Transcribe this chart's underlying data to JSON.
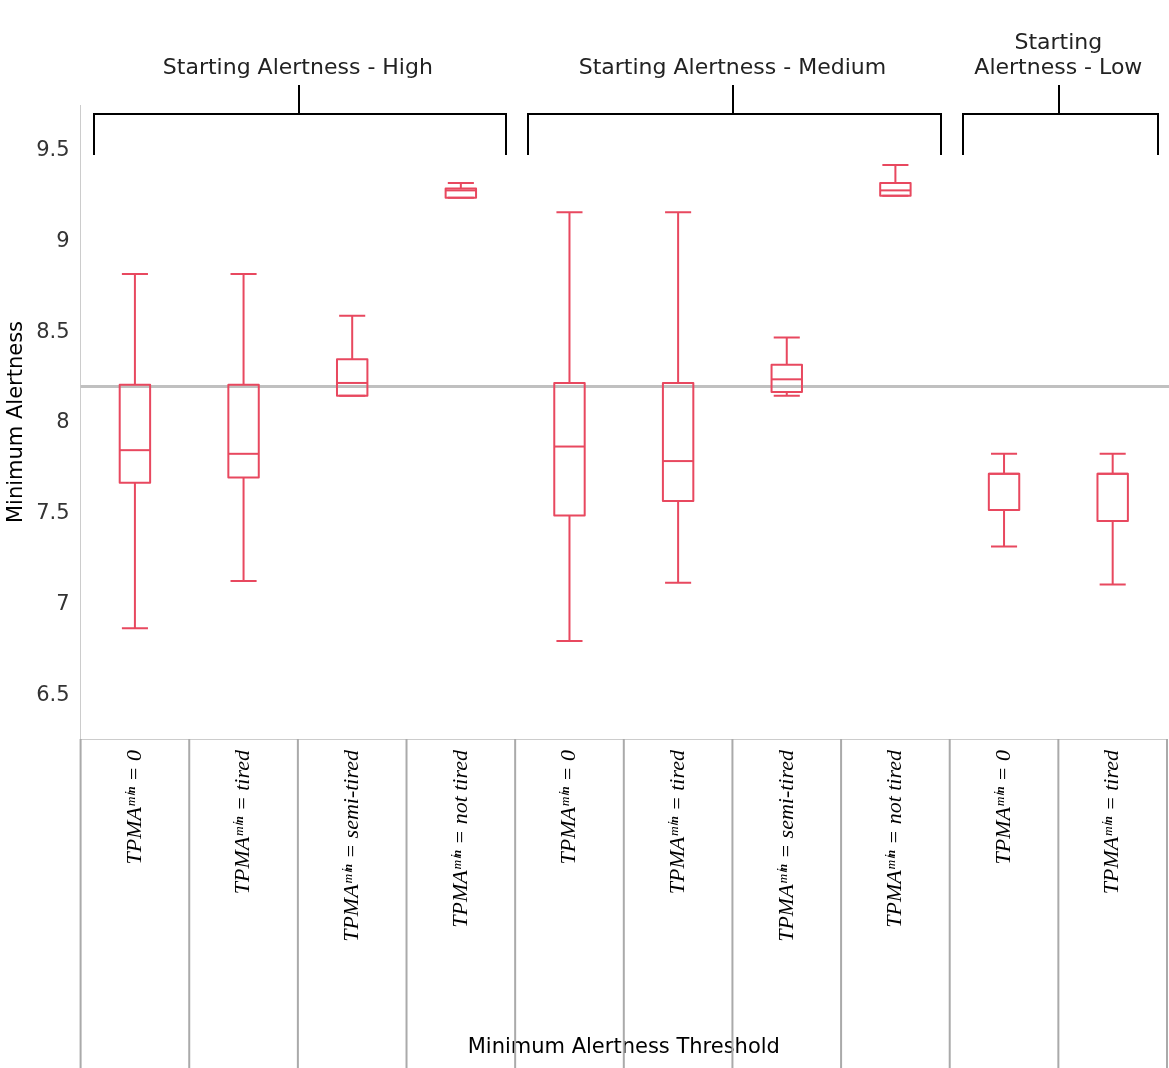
{
  "chart_data": {
    "type": "box",
    "xlabel": "Minimum Alertness Threshold",
    "ylabel": "Minimum Alertness",
    "categories": [
      "TPMAᵐⁱⁿ = 0",
      "TPMAᵐⁱⁿ = tired",
      "TPMAᵐⁱⁿ = semi-tired",
      "TPMAᵐⁱⁿ = not tired",
      "TPMAᵐⁱⁿ = 0",
      "TPMAᵐⁱⁿ = tired",
      "TPMAᵐⁱⁿ = semi-tired",
      "TPMAᵐⁱⁿ = not tired",
      "TPMAᵐⁱⁿ = 0",
      "TPMAᵐⁱⁿ = tired"
    ],
    "series": [
      {
        "color": "#e8485f",
        "boxes": [
          {
            "low": 6.87,
            "q1": 7.67,
            "median": 7.85,
            "q3": 8.21,
            "high": 8.82
          },
          {
            "low": 7.13,
            "q1": 7.7,
            "median": 7.83,
            "q3": 8.21,
            "high": 8.82
          },
          {
            "low": 8.15,
            "q1": 8.15,
            "median": 8.22,
            "q3": 8.35,
            "high": 8.59
          },
          {
            "low": 9.24,
            "q1": 9.24,
            "median": 9.28,
            "q3": 9.29,
            "high": 9.32
          },
          {
            "low": 6.8,
            "q1": 7.49,
            "median": 7.87,
            "q3": 8.22,
            "high": 9.16
          },
          {
            "low": 7.12,
            "q1": 7.57,
            "median": 7.79,
            "q3": 8.22,
            "high": 9.16
          },
          {
            "low": 8.15,
            "q1": 8.17,
            "median": 8.24,
            "q3": 8.32,
            "high": 8.47
          },
          {
            "low": 9.25,
            "q1": 9.25,
            "median": 9.28,
            "q3": 9.32,
            "high": 9.42
          },
          {
            "low": 7.32,
            "q1": 7.52,
            "median": 7.72,
            "q3": 7.72,
            "high": 7.83
          },
          {
            "low": 7.11,
            "q1": 7.46,
            "median": 7.72,
            "q3": 7.72,
            "high": 7.83
          }
        ]
      }
    ],
    "ylim": [
      6.26,
      9.75
    ],
    "yticks": [
      6.5,
      7,
      7.5,
      8,
      8.5,
      9,
      9.5
    ],
    "ref_lines": [
      {
        "axis": "y",
        "value": 8.2,
        "color": "#c0c0c0"
      }
    ],
    "annotations": [
      "Starting Alertness - High",
      "Starting Alertness -  Medium",
      "Starting Alertness - Low"
    ],
    "legend": false
  }
}
